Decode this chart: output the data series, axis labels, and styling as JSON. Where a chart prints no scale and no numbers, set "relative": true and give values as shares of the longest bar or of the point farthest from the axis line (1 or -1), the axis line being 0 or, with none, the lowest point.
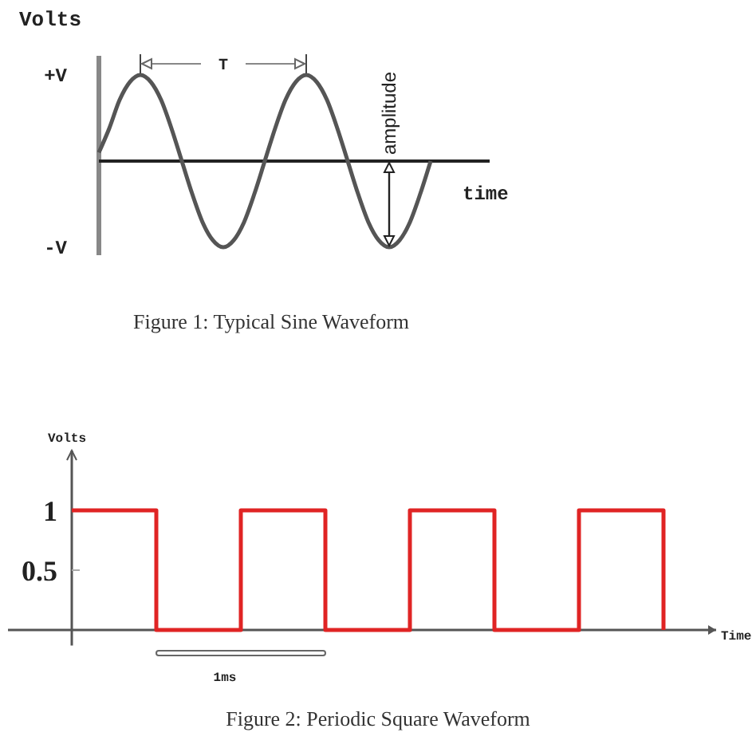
{
  "chart_data": [
    {
      "type": "line",
      "title": "Figure 1: Typical Sine Waveform",
      "xlabel": "time",
      "ylabel": "Volts",
      "relative": true,
      "color": "#555555",
      "categories": [
        null,
        null,
        null,
        null,
        null,
        null,
        null,
        null,
        null,
        null,
        null,
        null,
        null,
        null,
        null,
        null,
        null,
        null,
        null,
        null,
        null,
        null,
        null,
        null,
        null,
        null,
        null,
        null,
        null,
        null,
        null,
        null,
        null
      ],
      "values": [
        0.1,
        0.38,
        0.71,
        0.92,
        1,
        0.92,
        0.71,
        0.38,
        0,
        -0.38,
        -0.71,
        -0.92,
        -1,
        -0.92,
        -0.71,
        -0.38,
        0,
        0.38,
        0.71,
        0.92,
        1,
        0.92,
        0.71,
        0.38,
        0,
        -0.38,
        -0.71,
        -0.92,
        -1,
        -0.92,
        -0.71,
        -0.38,
        0
      ],
      "annotations": [
        "+V",
        "-V",
        "T",
        "amplitude"
      ]
    },
    {
      "type": "step",
      "title": "Figure 2: Periodic Square Waveform",
      "xlabel": "Time",
      "ylabel": "Volts",
      "color": "#e02424",
      "categories": [
        null,
        null,
        null,
        null,
        null,
        null,
        null,
        null
      ],
      "values": [
        1,
        0,
        1,
        0,
        1,
        0,
        1,
        0
      ],
      "ylim": [
        -0.13,
        1.5
      ],
      "yticks": [
        1,
        0.5
      ],
      "annotations": [
        "1ms"
      ]
    }
  ]
}
